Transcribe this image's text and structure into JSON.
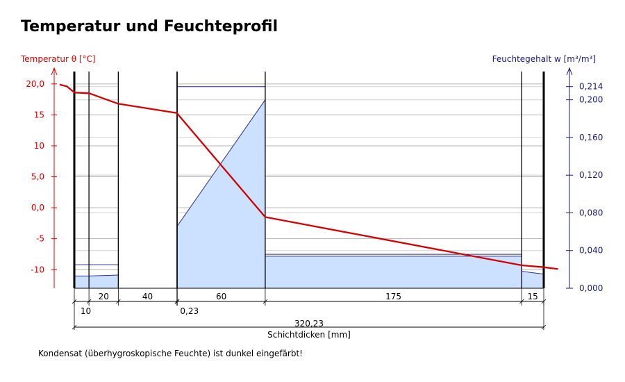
{
  "title": "Temperatur und Feuchteprofil",
  "footnote": "Kondensat (überhygroskopische Feuchte) ist dunkel eingefärbt!",
  "colors": {
    "temperature": "#d40000",
    "moisture_line": "#2e2e8a",
    "moisture_fill": "#cce0ff",
    "right_axis": "#1a1a7a"
  },
  "chart_data": {
    "type": "line",
    "left_axis": {
      "label": "Temperatur θ [°C]",
      "ylim": [
        -13,
        22
      ],
      "ticks": [
        20,
        15,
        10,
        5,
        0,
        -5,
        -10
      ],
      "tick_labels": [
        "20,0",
        "15",
        "10",
        "5,0",
        "0,0",
        "-5",
        "-10"
      ]
    },
    "right_axis": {
      "label": "Feuchtegehalt  w [m³/m³]",
      "ylim": [
        0,
        0.23
      ],
      "ticks": [
        0.214,
        0.2,
        0.16,
        0.12,
        0.08,
        0.04,
        0.0
      ],
      "tick_labels": [
        "0,214",
        "0,200",
        "0,160",
        "0,120",
        "0,080",
        "0,040",
        "0,000"
      ]
    },
    "x_axis": {
      "label": "Schichtdicken [mm]",
      "total": 320.23,
      "total_label": "320,23"
    },
    "layers": [
      {
        "thickness": 10,
        "label": "10"
      },
      {
        "thickness": 20,
        "label": "20"
      },
      {
        "thickness": 40,
        "label": "40"
      },
      {
        "thickness": 0.23,
        "label": "0,23"
      },
      {
        "thickness": 60,
        "label": "60"
      },
      {
        "thickness": 175,
        "label": "175"
      },
      {
        "thickness": 15,
        "label": "15"
      }
    ],
    "temperature_series": {
      "x_mm": [
        -10,
        -5,
        0,
        10,
        30,
        70,
        70.23,
        130.23,
        305.23,
        320.23,
        330
      ],
      "y": [
        19.9,
        19.6,
        18.6,
        18.5,
        16.8,
        15.3,
        15.2,
        -1.5,
        -9.3,
        -9.6,
        -9.9
      ]
    },
    "moisture_profile": [
      {
        "x": [
          0,
          10
        ],
        "w": [
          0.013,
          0.013
        ]
      },
      {
        "x": [
          10,
          30
        ],
        "w": [
          0.013,
          0.014
        ]
      },
      {
        "x": [
          30,
          70
        ],
        "w": [
          0.0,
          0.0
        ]
      },
      {
        "x": [
          70.23,
          130.23
        ],
        "w": [
          0.066,
          0.2
        ]
      },
      {
        "x": [
          130.23,
          305.23
        ],
        "w": [
          0.034,
          0.034
        ]
      },
      {
        "x": [
          305.23,
          320.23
        ],
        "w": [
          0.018,
          0.015
        ]
      }
    ],
    "max_moisture": [
      {
        "x": [
          0,
          30
        ],
        "w": 0.025
      },
      {
        "x": [
          70.23,
          130.23
        ],
        "w": 0.214
      },
      {
        "x": [
          130.23,
          305.23
        ],
        "w": 0.036
      }
    ],
    "grid": true
  }
}
